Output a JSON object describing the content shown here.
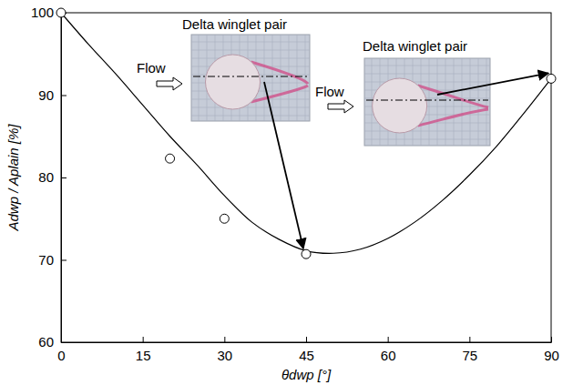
{
  "chart_data": {
    "type": "scatter",
    "x_label": "θdwp [°]",
    "y_label": "Adwp / Aplain [%]",
    "xlim": [
      0,
      90
    ],
    "xticks": [
      0,
      15,
      30,
      45,
      60,
      75,
      90
    ],
    "ylim": [
      60,
      100
    ],
    "yticks": [
      60,
      70,
      80,
      90,
      100
    ],
    "series": [
      {
        "type": "scatter",
        "marker": "circle",
        "color": "#000000",
        "x": [
          0,
          20,
          30,
          45,
          90
        ],
        "values": [
          100,
          82.3,
          75,
          70.7,
          92
        ]
      },
      {
        "type": "line",
        "line_style": "solid",
        "color": "#000000",
        "x": [
          0,
          5,
          10,
          15,
          20,
          25,
          30,
          35,
          40,
          45,
          50,
          55,
          60,
          65,
          70,
          75,
          80,
          85,
          90
        ],
        "values": [
          100,
          96.2,
          92.6,
          88.8,
          85.0,
          81.5,
          77.8,
          74.6,
          72.5,
          71.1,
          70.8,
          71.3,
          72.6,
          74.6,
          77.2,
          80.3,
          83.8,
          87.8,
          92.0
        ]
      }
    ],
    "annotations": [
      "Delta winglet pair",
      "Flow",
      "Delta winglet pair",
      "Flow"
    ]
  }
}
